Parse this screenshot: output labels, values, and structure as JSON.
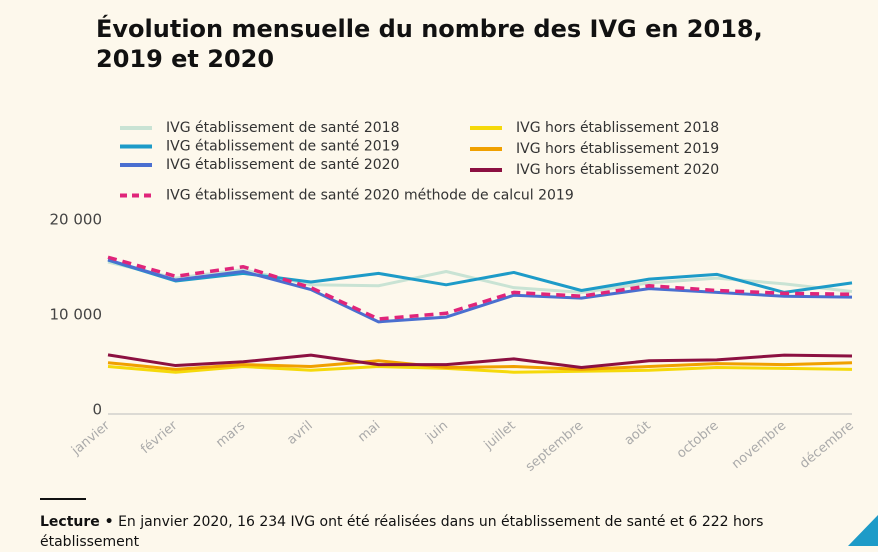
{
  "chart_data": {
    "type": "line",
    "title": "Évolution mensuelle du nombre des IVG en 2018, 2019 et 2020",
    "categories": [
      "janvier",
      "février",
      "mars",
      "avril",
      "mai",
      "juin",
      "juillet",
      "septembre",
      "août",
      "octobre",
      "novembre",
      "décembre"
    ],
    "series": [
      {
        "name": "IVG établissement de santé 2018",
        "color": "#c9e3d4",
        "values": [
          16000,
          14300,
          15200,
          13600,
          13500,
          15000,
          13300,
          12800,
          13800,
          14300,
          13700,
          12900
        ]
      },
      {
        "name": "IVG établissement de santé 2019",
        "color": "#1d9bc8",
        "values": [
          16200,
          14000,
          14800,
          13900,
          14800,
          13600,
          14900,
          13000,
          14200,
          14700,
          12800,
          13800
        ]
      },
      {
        "name": "IVG établissement de santé 2020",
        "color": "#4a6fd0",
        "values": [
          16234,
          14100,
          15000,
          13100,
          9700,
          10200,
          12500,
          12200,
          13200,
          12800,
          12400,
          12300
        ]
      },
      {
        "name": "IVG hors établissement 2018",
        "color": "#f5d90a",
        "values": [
          5000,
          4400,
          5000,
          4600,
          5000,
          4800,
          4400,
          4500,
          4600,
          4900,
          4800,
          4700
        ]
      },
      {
        "name": "IVG hors établissement 2019",
        "color": "#f0a000",
        "values": [
          5400,
          4700,
          5200,
          5000,
          5600,
          4900,
          5000,
          4700,
          5000,
          5300,
          5200,
          5400
        ]
      },
      {
        "name": "IVG hors établissement 2020",
        "color": "#8c1041",
        "values": [
          6222,
          5100,
          5500,
          6200,
          5200,
          5200,
          5800,
          4900,
          5600,
          5700,
          6200,
          6100
        ]
      },
      {
        "name": "IVG établissement de santé 2020 méthode de calcul 2019",
        "color": "#e0257a",
        "dashed": true,
        "values": [
          16500,
          14500,
          15500,
          13300,
          10000,
          10600,
          12800,
          12400,
          13500,
          13000,
          12700,
          12600
        ]
      }
    ],
    "ylim": [
      0,
      20000
    ],
    "yticks": [
      0,
      {
        "value": 10000,
        "label": "10 000"
      },
      {
        "value": 20000,
        "label": "20 000"
      }
    ],
    "grid": false,
    "footnote": {
      "label": "Lecture •",
      "text": "En janvier 2020, 16 234 IVG ont été réalisées dans un établissement de santé et 6 222 hors établissement"
    }
  }
}
